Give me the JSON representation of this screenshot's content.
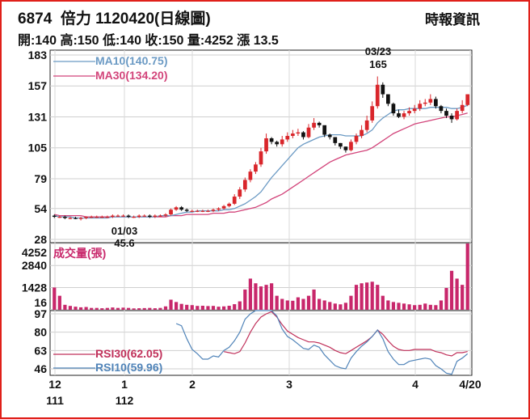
{
  "header": {
    "code": "6874",
    "name": "倍力",
    "date_label": "1120420(日線圖)",
    "source": "時報資訊",
    "quote": "開:140 高:150 低:140 收:150 量:4252 漲 13.5"
  },
  "chart_data": {
    "type": "candlestick",
    "x_ticks": [
      {
        "label": "12",
        "sub": "111"
      },
      {
        "label": "1",
        "sub": "112"
      },
      {
        "label": "2",
        "sub": ""
      },
      {
        "label": "3",
        "sub": ""
      },
      {
        "label": "4",
        "sub": ""
      },
      {
        "label": "4/20",
        "sub": ""
      }
    ],
    "price_axis": {
      "ticks": [
        28,
        54,
        79,
        105,
        131,
        157,
        183
      ],
      "ylim": [
        28,
        183
      ]
    },
    "volume_axis": {
      "ticks": [
        16,
        1428,
        2840,
        4252
      ],
      "ylim": [
        0,
        4252
      ],
      "label": "成交量(張)"
    },
    "rsi_axis": {
      "ticks": [
        46,
        63,
        80,
        97
      ],
      "ylim": [
        40,
        100
      ]
    },
    "annotations": [
      {
        "label": "03/23",
        "value": "165"
      },
      {
        "label": "01/03",
        "value": "45.6"
      }
    ],
    "legend": {
      "ma10": {
        "label": "MA10(140.75)",
        "color": "#6b9ac4"
      },
      "ma30": {
        "label": "MA30(134.20)",
        "color": "#d2447a"
      },
      "rsi30": {
        "label": "RSI30(62.05)",
        "color": "#c0305a"
      },
      "rsi10": {
        "label": "RSI10(59.96)",
        "color": "#4f83b8"
      }
    },
    "candles": {
      "open": [
        48,
        47,
        47,
        46,
        46,
        45.6,
        46,
        47,
        47,
        47,
        47,
        47,
        48,
        48,
        48,
        47,
        47,
        48,
        48,
        47,
        48,
        48,
        49,
        53,
        55,
        53,
        52,
        52,
        52,
        52,
        52,
        53,
        54,
        56,
        58,
        64,
        70,
        78,
        85,
        91,
        102,
        113,
        110,
        108,
        112,
        115,
        117,
        118,
        114,
        122,
        126,
        124,
        116,
        114,
        109,
        106,
        103,
        110,
        115,
        120,
        128,
        140,
        158,
        150,
        142,
        134,
        131,
        134,
        136,
        138,
        142,
        143,
        146,
        140,
        136,
        132,
        129,
        136,
        141
      ],
      "close": [
        47,
        47,
        46,
        46,
        45.6,
        46,
        47,
        47,
        47,
        47,
        47,
        48,
        48,
        48,
        47,
        47,
        48,
        48,
        47,
        48,
        48,
        49,
        53,
        55,
        53,
        52,
        52,
        52,
        52,
        52,
        53,
        54,
        56,
        58,
        64,
        70,
        78,
        85,
        91,
        102,
        113,
        110,
        108,
        112,
        115,
        117,
        118,
        114,
        122,
        126,
        124,
        116,
        114,
        109,
        106,
        103,
        110,
        115,
        120,
        128,
        140,
        158,
        150,
        142,
        134,
        131,
        134,
        136,
        138,
        142,
        143,
        146,
        140,
        136,
        132,
        129,
        136,
        141,
        150
      ],
      "high": [
        49,
        48,
        48,
        47,
        47,
        47,
        47.5,
        48,
        48,
        48,
        48,
        49,
        49,
        49,
        49,
        48,
        49,
        49,
        49,
        49,
        49,
        50,
        54,
        56,
        56,
        54,
        53,
        53,
        53,
        53,
        54,
        55,
        57,
        59,
        66,
        72,
        80,
        87,
        93,
        105,
        117,
        114,
        111,
        115,
        118,
        120,
        121,
        119,
        125,
        130,
        127,
        120,
        117,
        111,
        109,
        106,
        112,
        117,
        124,
        132,
        144,
        165,
        160,
        150,
        143,
        137,
        136,
        139,
        141,
        145,
        146,
        150,
        148,
        141,
        138,
        134,
        138,
        145,
        150
      ],
      "low": [
        46,
        46,
        45,
        45,
        45,
        44,
        45,
        46,
        46,
        46,
        46,
        46,
        47,
        47,
        46,
        46,
        46,
        47,
        46,
        46,
        47,
        47,
        48,
        52,
        52,
        51,
        51,
        51,
        51,
        51,
        51,
        52,
        53,
        55,
        57,
        62,
        68,
        76,
        83,
        89,
        100,
        108,
        106,
        106,
        110,
        113,
        115,
        112,
        113,
        120,
        122,
        114,
        112,
        107,
        104,
        101,
        102,
        108,
        113,
        118,
        126,
        138,
        147,
        140,
        132,
        130,
        129,
        132,
        134,
        136,
        140,
        141,
        138,
        134,
        130,
        126,
        128,
        134,
        140
      ]
    },
    "ma10": [
      48,
      47,
      47,
      47,
      46,
      46,
      46,
      46,
      46,
      46,
      46,
      47,
      47,
      47,
      47,
      47,
      47,
      47,
      47,
      47,
      48,
      48,
      48,
      49,
      50,
      51,
      51,
      52,
      52,
      52,
      52,
      52,
      53,
      53,
      54,
      56,
      58,
      61,
      64,
      68,
      74,
      80,
      85,
      90,
      95,
      100,
      105,
      108,
      110,
      112,
      114,
      115,
      116,
      116,
      116,
      115,
      115,
      115,
      115,
      117,
      120,
      126,
      130,
      133,
      136,
      137,
      137,
      138,
      138,
      138,
      138,
      139,
      139,
      139,
      139,
      138,
      138,
      139,
      140.75
    ],
    "ma30": [
      49,
      48,
      48,
      48,
      48,
      48,
      47,
      47,
      47,
      47,
      47,
      47,
      47,
      47,
      47,
      47,
      47,
      47,
      47,
      47,
      47,
      47,
      48,
      48,
      48,
      49,
      49,
      49,
      49,
      49,
      50,
      50,
      50,
      51,
      51,
      52,
      53,
      54,
      55,
      57,
      59,
      62,
      64,
      66,
      69,
      72,
      75,
      78,
      81,
      84,
      87,
      90,
      93,
      95,
      97,
      99,
      100,
      101,
      102,
      103,
      105,
      108,
      111,
      114,
      117,
      119,
      121,
      123,
      125,
      126,
      127,
      128,
      129,
      130,
      131,
      131,
      132,
      133,
      134.2
    ],
    "volume": [
      1428,
      900,
      320,
      250,
      200,
      160,
      180,
      120,
      120,
      100,
      120,
      150,
      120,
      140,
      120,
      90,
      100,
      110,
      120,
      100,
      120,
      220,
      650,
      500,
      380,
      320,
      300,
      250,
      260,
      240,
      250,
      200,
      220,
      260,
      360,
      540,
      1300,
      2000,
      1700,
      1500,
      1600,
      1700,
      900,
      700,
      600,
      580,
      800,
      700,
      900,
      1300,
      700,
      600,
      500,
      400,
      350,
      450,
      900,
      1600,
      1700,
      1750,
      1800,
      1600,
      900,
      600,
      500,
      450,
      400,
      350,
      300,
      320,
      400,
      320,
      300,
      600,
      1400,
      2500,
      2000,
      1600,
      4252
    ],
    "rsi10": [
      null,
      null,
      null,
      null,
      null,
      null,
      null,
      null,
      null,
      null,
      null,
      null,
      null,
      null,
      null,
      null,
      null,
      null,
      null,
      null,
      null,
      null,
      null,
      88,
      86,
      74,
      64,
      60,
      55,
      55,
      58,
      57,
      63,
      66,
      72,
      80,
      92,
      97,
      100,
      100,
      100,
      100,
      95,
      83,
      76,
      73,
      69,
      65,
      64,
      68,
      66,
      59,
      54,
      49,
      47,
      46,
      56,
      62,
      67,
      71,
      76,
      82,
      74,
      62,
      55,
      50,
      50,
      53,
      54,
      55,
      56,
      55,
      49,
      46,
      42,
      41,
      53,
      56,
      59.96
    ],
    "rsi30": [
      null,
      null,
      null,
      null,
      null,
      null,
      null,
      null,
      null,
      null,
      null,
      null,
      null,
      null,
      null,
      null,
      null,
      null,
      null,
      null,
      null,
      null,
      null,
      null,
      null,
      null,
      null,
      null,
      null,
      null,
      null,
      null,
      62,
      61,
      60,
      62,
      70,
      80,
      88,
      94,
      97,
      99,
      94,
      87,
      81,
      78,
      75,
      73,
      71,
      71,
      70,
      68,
      66,
      63,
      61,
      60,
      63,
      66,
      69,
      72,
      76,
      82,
      78,
      72,
      67,
      64,
      63,
      63,
      64,
      64,
      64,
      64,
      62,
      61,
      59,
      58,
      61,
      61,
      62.05
    ]
  }
}
